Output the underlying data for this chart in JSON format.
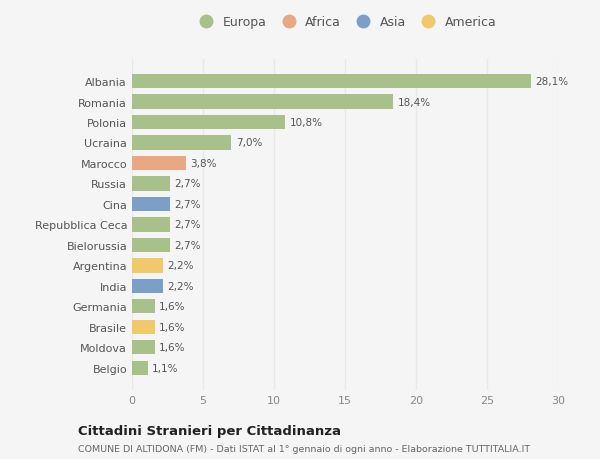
{
  "categories": [
    "Albania",
    "Romania",
    "Polonia",
    "Ucraina",
    "Marocco",
    "Russia",
    "Cina",
    "Repubblica Ceca",
    "Bielorussia",
    "Argentina",
    "India",
    "Germania",
    "Brasile",
    "Moldova",
    "Belgio"
  ],
  "values": [
    28.1,
    18.4,
    10.8,
    7.0,
    3.8,
    2.7,
    2.7,
    2.7,
    2.7,
    2.2,
    2.2,
    1.6,
    1.6,
    1.6,
    1.1
  ],
  "labels": [
    "28,1%",
    "18,4%",
    "10,8%",
    "7,0%",
    "3,8%",
    "2,7%",
    "2,7%",
    "2,7%",
    "2,7%",
    "2,2%",
    "2,2%",
    "1,6%",
    "1,6%",
    "1,6%",
    "1,1%"
  ],
  "continents": [
    "Europa",
    "Europa",
    "Europa",
    "Europa",
    "Africa",
    "Europa",
    "Asia",
    "Europa",
    "Europa",
    "America",
    "Asia",
    "Europa",
    "America",
    "Europa",
    "Europa"
  ],
  "continent_colors": {
    "Europa": "#a8c08a",
    "Africa": "#e8a882",
    "Asia": "#7b9fc7",
    "America": "#f0c96a"
  },
  "legend_order": [
    "Europa",
    "Africa",
    "Asia",
    "America"
  ],
  "title": "Cittadini Stranieri per Cittadinanza",
  "subtitle": "COMUNE DI ALTIDONA (FM) - Dati ISTAT al 1° gennaio di ogni anno - Elaborazione TUTTITALIA.IT",
  "xlim": [
    0,
    30
  ],
  "xticks": [
    0,
    5,
    10,
    15,
    20,
    25,
    30
  ],
  "background_color": "#f5f5f5",
  "grid_color": "#e8e8e8",
  "bar_height": 0.7
}
